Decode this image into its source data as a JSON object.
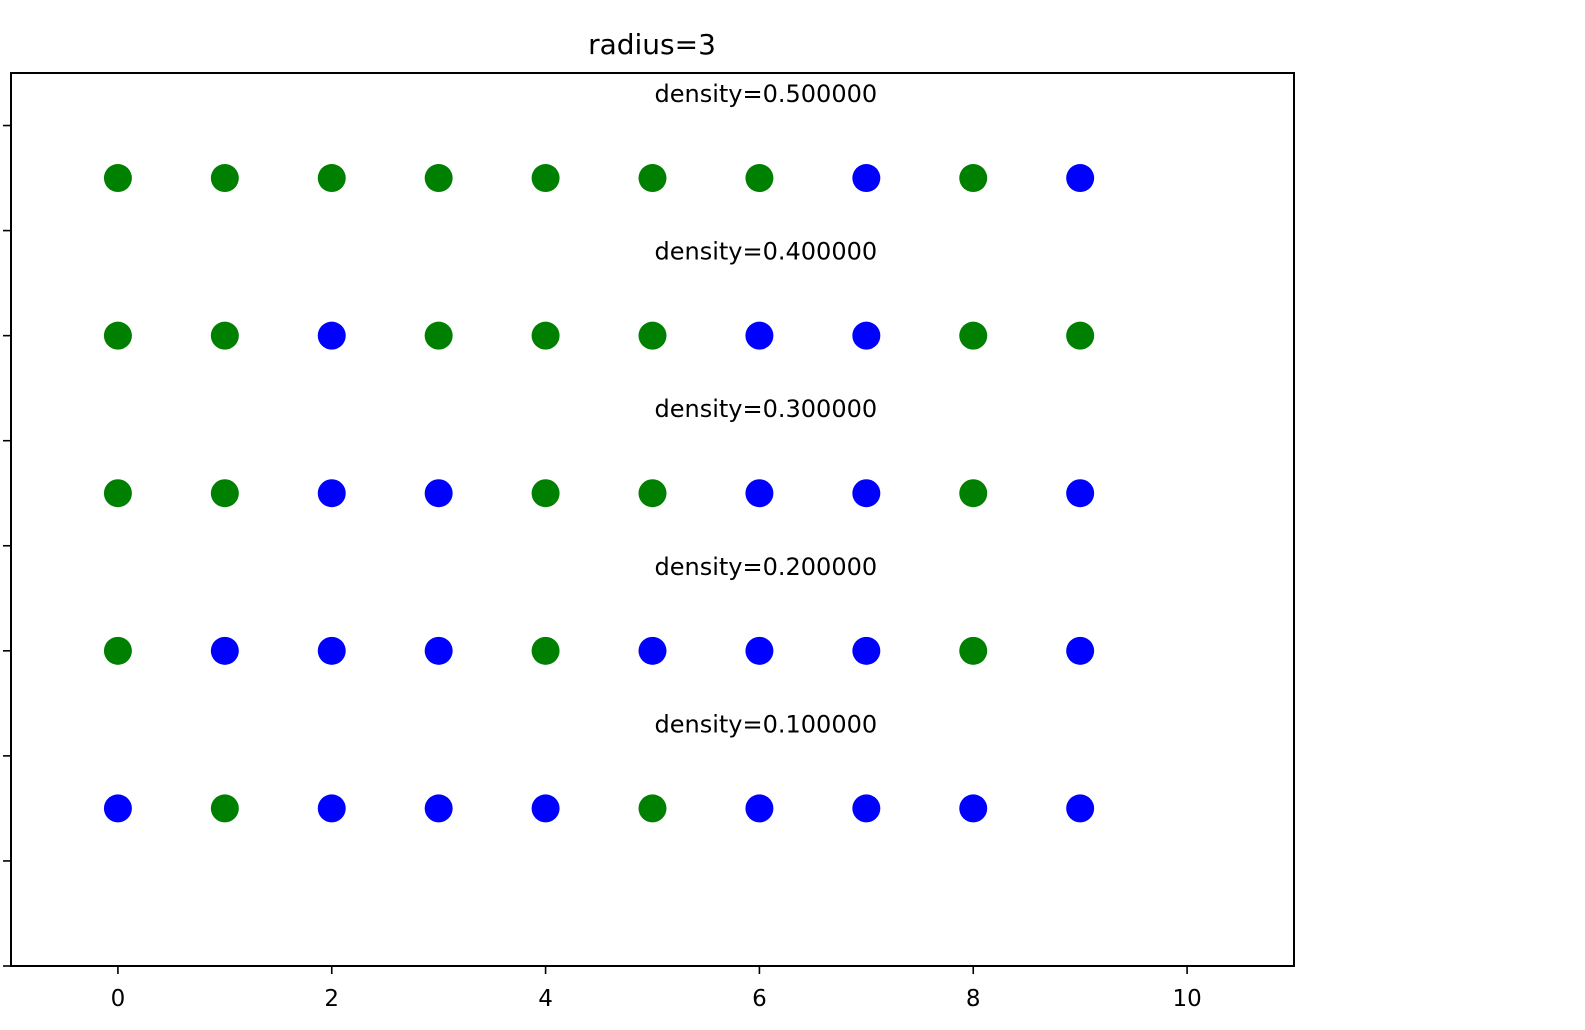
{
  "chart_data": {
    "type": "scatter",
    "title": "radius=3",
    "xlabel": "",
    "ylabel": "",
    "xlim": [
      -1,
      11
    ],
    "ylim": [
      0,
      8.5
    ],
    "x_ticks": [
      0,
      2,
      4,
      6,
      8,
      10
    ],
    "x_tick_labels": [
      "0",
      "2",
      "4",
      "6",
      "8",
      "10"
    ],
    "y_ticks": [
      0,
      1,
      2,
      3,
      4,
      5,
      6,
      7,
      8
    ],
    "y_tick_labels_visible": false,
    "grid": false,
    "legend": "none",
    "colors": {
      "green": "#008000",
      "blue": "#0000ff"
    },
    "annotations": [
      {
        "text": "density=0.500000",
        "x": 5,
        "y": 8.3
      },
      {
        "text": "density=0.400000",
        "x": 5,
        "y": 6.8
      },
      {
        "text": "density=0.300000",
        "x": 5,
        "y": 5.3
      },
      {
        "text": "density=0.200000",
        "x": 5,
        "y": 3.8
      },
      {
        "text": "density=0.100000",
        "x": 5,
        "y": 2.3
      }
    ],
    "rows": [
      {
        "density": 0.5,
        "y": 7.5,
        "colors": [
          "green",
          "green",
          "green",
          "green",
          "green",
          "green",
          "green",
          "blue",
          "green",
          "blue"
        ]
      },
      {
        "density": 0.4,
        "y": 6.0,
        "colors": [
          "green",
          "green",
          "blue",
          "green",
          "green",
          "green",
          "blue",
          "blue",
          "green",
          "green"
        ]
      },
      {
        "density": 0.3,
        "y": 4.5,
        "colors": [
          "green",
          "green",
          "blue",
          "blue",
          "green",
          "green",
          "blue",
          "blue",
          "green",
          "blue"
        ]
      },
      {
        "density": 0.2,
        "y": 3.0,
        "colors": [
          "green",
          "blue",
          "blue",
          "blue",
          "green",
          "blue",
          "blue",
          "blue",
          "green",
          "blue"
        ]
      },
      {
        "density": 0.1,
        "y": 1.5,
        "colors": [
          "blue",
          "green",
          "blue",
          "blue",
          "blue",
          "green",
          "blue",
          "blue",
          "blue",
          "blue"
        ]
      }
    ],
    "x_positions": [
      0,
      1,
      2,
      3,
      4,
      5,
      6,
      7,
      8,
      9
    ]
  }
}
